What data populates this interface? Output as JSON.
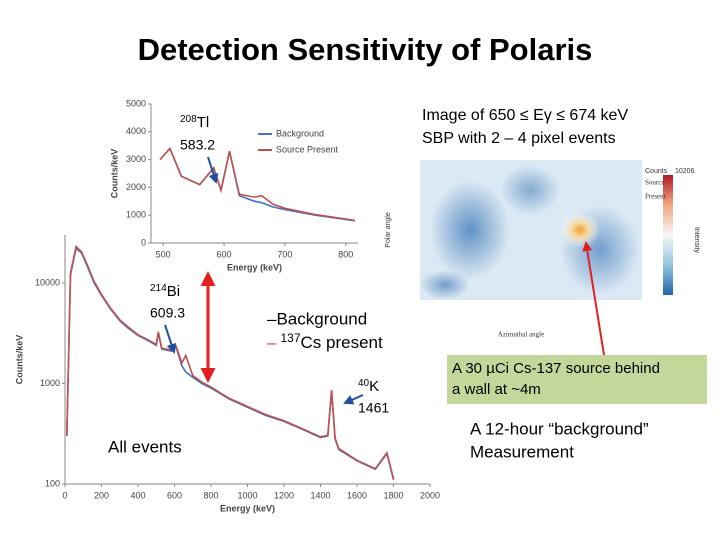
{
  "title": "Detection Sensitivity of Polaris",
  "annotations": {
    "tl_mass": "208",
    "tl_sym": "Tl",
    "tl_energy": "583.2",
    "bi_mass": "214",
    "bi_sym": "Bi",
    "bi_energy": "609.3",
    "legend_bg": "–Background",
    "legend_cs_prefix": "–",
    "cs_mass": "137",
    "cs_text": "Cs present",
    "k_mass": "40",
    "k_sym": "K",
    "k_energy": "1461",
    "all_events": "All events",
    "image_caption": [
      "Image of 650 ≤ Eγ ≤ 674 keV",
      "SBP with 2 – 4 pixel events"
    ],
    "source_box": [
      "A 30 µCi Cs-137 source behind",
      "a wall at ~4m"
    ],
    "background_note": [
      "A 12-hour “background”",
      "Measurement"
    ]
  },
  "image": {
    "counts_label": "Counts",
    "counts": 10206,
    "source_present": [
      "Source",
      "Present"
    ],
    "y_label": "Polar angle",
    "x_label": "Azimuthal angle",
    "colorbar_label": "Intensity"
  },
  "chart_data": [
    {
      "type": "line",
      "x_label": "Energy (keV)",
      "y_label": "Counts/keV",
      "log_y": true,
      "xlim": [
        0,
        2000
      ],
      "xticks": [
        0,
        200,
        400,
        600,
        800,
        1000,
        1200,
        1400,
        1600,
        1800,
        2000
      ],
      "ylim": [
        100,
        30000
      ],
      "yticks": [
        100,
        1000,
        10000
      ],
      "x": [
        10,
        30,
        60,
        90,
        120,
        160,
        200,
        250,
        300,
        350,
        400,
        450,
        500,
        511,
        530,
        583,
        609,
        640,
        662,
        700,
        750,
        800,
        900,
        1000,
        1100,
        1200,
        1300,
        1400,
        1440,
        1461,
        1480,
        1500,
        1600,
        1700,
        1764,
        1800
      ],
      "series": [
        {
          "color": "#4472c4",
          "values": [
            300,
            12000,
            22000,
            20000,
            15000,
            10000,
            7500,
            5500,
            4200,
            3500,
            3000,
            2700,
            2400,
            3200,
            2200,
            2100,
            2300,
            1500,
            1300,
            1150,
            1000,
            900,
            700,
            580,
            480,
            420,
            350,
            290,
            300,
            850,
            280,
            220,
            170,
            140,
            200,
            110
          ]
        },
        {
          "color": "#c0504d",
          "values": [
            300,
            12500,
            23000,
            20500,
            15500,
            10300,
            7700,
            5600,
            4300,
            3600,
            3050,
            2750,
            2450,
            3250,
            2250,
            2150,
            2350,
            1600,
            1900,
            1200,
            1030,
            920,
            710,
            590,
            490,
            425,
            355,
            295,
            305,
            860,
            285,
            225,
            172,
            142,
            205,
            112
          ]
        }
      ]
    },
    {
      "type": "line",
      "x_label": "Energy (keV)",
      "y_label": "Counts/keV",
      "legend": "upper right",
      "xlim": [
        480,
        820
      ],
      "xticks": [
        500,
        600,
        700,
        800
      ],
      "ylim": [
        0,
        5000
      ],
      "yticks": [
        0,
        1000,
        2000,
        3000,
        4000,
        5000
      ],
      "x": [
        495,
        511,
        530,
        560,
        583,
        595,
        609,
        625,
        650,
        662,
        680,
        700,
        750,
        800,
        815
      ],
      "series": [
        {
          "name": "Background",
          "color": "#4472c4",
          "values": [
            3000,
            3400,
            2400,
            2100,
            2700,
            1900,
            3300,
            1700,
            1500,
            1450,
            1300,
            1200,
            1000,
            850,
            800
          ]
        },
        {
          "name": "Source Present",
          "color": "#c0504d",
          "values": [
            3000,
            3400,
            2400,
            2100,
            2700,
            1900,
            3300,
            1750,
            1650,
            1700,
            1400,
            1250,
            1020,
            860,
            810
          ]
        }
      ]
    }
  ]
}
